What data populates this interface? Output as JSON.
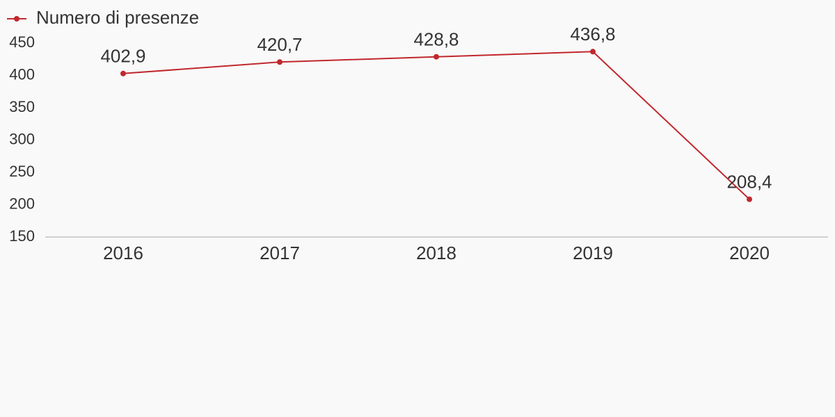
{
  "chart_data": {
    "type": "line",
    "categories": [
      "2016",
      "2017",
      "2018",
      "2019",
      "2020"
    ],
    "series": [
      {
        "name": "Numero di presenze",
        "color": "#c0282d",
        "values": [
          402.9,
          420.7,
          428.8,
          436.8,
          208.4
        ],
        "value_labels": [
          "402,9",
          "420,7",
          "428,8",
          "436,8",
          "208,4"
        ]
      }
    ],
    "ylim": [
      150,
      450
    ],
    "yticks": [
      150,
      200,
      250,
      300,
      350,
      400,
      450
    ],
    "legend": "top-left"
  }
}
